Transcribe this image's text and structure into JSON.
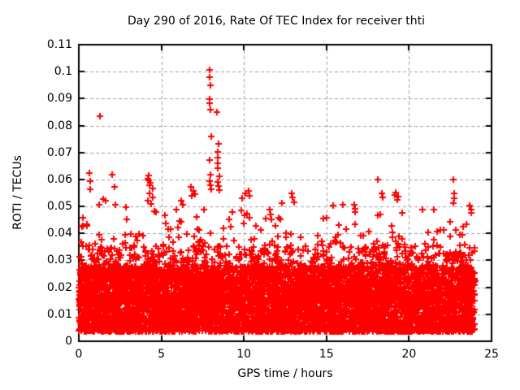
{
  "window": {
    "title": "Day 290 of 2016, Rate Of TEC Index for receiver thti"
  },
  "colors": {
    "marker": "#ff0000",
    "grid": "#a0a0a0",
    "axis": "#000000",
    "text": "#000000",
    "background": "#ffffff"
  },
  "chart_data": {
    "type": "scatter",
    "title": "Day 290 of 2016, Rate Of TEC Index for receiver thti",
    "xlabel": "GPS time / hours",
    "ylabel": "ROTI / TECUs",
    "xlim": [
      0,
      25
    ],
    "ylim": [
      0,
      0.11
    ],
    "xticks": [
      0,
      5,
      10,
      15,
      20,
      25
    ],
    "xtick_labels": [
      "0",
      "5",
      "10",
      "15",
      "20",
      "25"
    ],
    "yticks": [
      0,
      0.01,
      0.02,
      0.03,
      0.04,
      0.05,
      0.06,
      0.07,
      0.08,
      0.09,
      0.1,
      0.11
    ],
    "ytick_labels": [
      "0",
      "0.01",
      "0.02",
      "0.03",
      "0.04",
      "0.05",
      "0.06",
      "0.07",
      "0.08",
      "0.09",
      "0.1",
      "0.11"
    ],
    "grid": "dashed-both-axes",
    "legend": "none",
    "marker": "plus",
    "series_name": "ROTI",
    "data_x_range": [
      0,
      24
    ],
    "spikes": [
      [
        0.25,
        0.0458
      ],
      [
        0.49,
        0.0434
      ],
      [
        0.64,
        0.0624
      ],
      [
        0.69,
        0.0594
      ],
      [
        0.7,
        0.0563
      ],
      [
        1.23,
        0.0506
      ],
      [
        1.28,
        0.0835
      ],
      [
        1.48,
        0.0527
      ],
      [
        1.62,
        0.0521
      ],
      [
        2.02,
        0.0618
      ],
      [
        2.17,
        0.0573
      ],
      [
        2.21,
        0.0506
      ],
      [
        2.85,
        0.0497
      ],
      [
        2.9,
        0.0452
      ],
      [
        4.18,
        0.0603
      ],
      [
        4.2,
        0.0521
      ],
      [
        4.22,
        0.0615
      ],
      [
        4.25,
        0.0597
      ],
      [
        4.28,
        0.0549
      ],
      [
        4.3,
        0.0579
      ],
      [
        4.35,
        0.0589
      ],
      [
        4.4,
        0.0508
      ],
      [
        4.48,
        0.0567
      ],
      [
        4.5,
        0.0533
      ],
      [
        4.58,
        0.0482
      ],
      [
        5.2,
        0.0468
      ],
      [
        5.4,
        0.0416
      ],
      [
        5.9,
        0.0488
      ],
      [
        6.2,
        0.052
      ],
      [
        6.3,
        0.0505
      ],
      [
        6.78,
        0.0572
      ],
      [
        6.85,
        0.054
      ],
      [
        6.95,
        0.0558
      ],
      [
        7.05,
        0.0545
      ],
      [
        7.9,
        0.0595
      ],
      [
        7.92,
        0.1007
      ],
      [
        7.92,
        0.098
      ],
      [
        7.92,
        0.0898
      ],
      [
        7.93,
        0.0883
      ],
      [
        7.93,
        0.0672
      ],
      [
        7.95,
        0.058
      ],
      [
        7.97,
        0.095
      ],
      [
        7.97,
        0.0859
      ],
      [
        7.97,
        0.0618
      ],
      [
        8.0,
        0.0565
      ],
      [
        8.02,
        0.0759
      ],
      [
        8.37,
        0.085
      ],
      [
        8.4,
        0.059
      ],
      [
        8.42,
        0.0702
      ],
      [
        8.42,
        0.0682
      ],
      [
        8.42,
        0.066
      ],
      [
        8.42,
        0.0642
      ],
      [
        8.45,
        0.0575
      ],
      [
        8.47,
        0.0732
      ],
      [
        8.5,
        0.056
      ],
      [
        8.51,
        0.0612
      ],
      [
        9.1,
        0.0452
      ],
      [
        9.3,
        0.0478
      ],
      [
        9.84,
        0.0485
      ],
      [
        9.9,
        0.053
      ],
      [
        10.1,
        0.0549
      ],
      [
        10.28,
        0.0558
      ],
      [
        10.35,
        0.054
      ],
      [
        11.55,
        0.0488
      ],
      [
        11.6,
        0.047
      ],
      [
        11.65,
        0.0452
      ],
      [
        12.3,
        0.0512
      ],
      [
        12.9,
        0.0549
      ],
      [
        12.95,
        0.0534
      ],
      [
        13.05,
        0.0515
      ],
      [
        14.8,
        0.0455
      ],
      [
        15.0,
        0.0458
      ],
      [
        15.4,
        0.0503
      ],
      [
        16.0,
        0.0506
      ],
      [
        16.7,
        0.0506
      ],
      [
        16.72,
        0.049
      ],
      [
        16.75,
        0.0478
      ],
      [
        18.1,
        0.06
      ],
      [
        18.35,
        0.0548
      ],
      [
        18.4,
        0.0533
      ],
      [
        19.15,
        0.0542
      ],
      [
        19.2,
        0.0551
      ],
      [
        19.3,
        0.0524
      ],
      [
        19.35,
        0.0536
      ],
      [
        19.6,
        0.0476
      ],
      [
        20.8,
        0.0488
      ],
      [
        21.5,
        0.0488
      ],
      [
        22.7,
        0.06
      ],
      [
        22.7,
        0.0512
      ],
      [
        22.72,
        0.0548
      ],
      [
        22.75,
        0.053
      ],
      [
        23.68,
        0.0503
      ],
      [
        23.75,
        0.0488
      ],
      [
        23.78,
        0.0476
      ]
    ],
    "band_model": {
      "note": "dense noise band of ~thousands of overlapping + markers, recreated procedurally",
      "seed": 20161017,
      "n_points": 7400,
      "y_floor": 0.0035,
      "solid_top": 0.028,
      "mid_top": 0.036,
      "tail_hourly_max": [
        0.047,
        0.044,
        0.043,
        0.04,
        0.05,
        0.044,
        0.047,
        0.05,
        0.052,
        0.046,
        0.048,
        0.046,
        0.047,
        0.04,
        0.043,
        0.045,
        0.046,
        0.042,
        0.048,
        0.047,
        0.044,
        0.043,
        0.048,
        0.046
      ]
    }
  }
}
